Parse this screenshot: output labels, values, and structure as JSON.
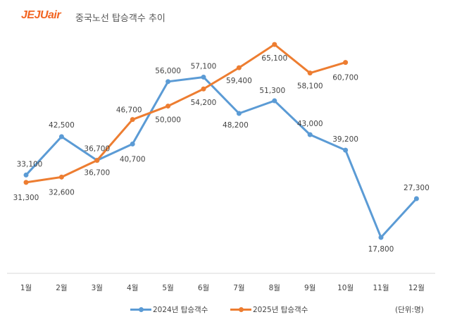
{
  "logo": "JEJUair",
  "title": "중국노선 탑승객수 추이",
  "unit": "(단위:명)",
  "chart_data": {
    "type": "line",
    "title": "중국노선 탑승객수 추이",
    "categories": [
      "1월",
      "2월",
      "3월",
      "4월",
      "5월",
      "6월",
      "7월",
      "8월",
      "9월",
      "10월",
      "11월",
      "12월"
    ],
    "series": [
      {
        "name": "2024년 탑승객수",
        "color": "#5b9bd5",
        "values": [
          33100,
          42500,
          36700,
          40700,
          56000,
          57100,
          48200,
          51300,
          43000,
          39200,
          17800,
          27300
        ],
        "labels": [
          "33,100",
          "42,500",
          "36,700",
          "40,700",
          "56,000",
          "57,100",
          "48,200",
          "51,300",
          "43,000",
          "39,200",
          "17,800",
          "27,300"
        ]
      },
      {
        "name": "2025년 탑승객수",
        "color": "#ed7d31",
        "values": [
          31300,
          32600,
          36700,
          46700,
          50000,
          54200,
          59400,
          65100,
          58100,
          60700,
          null,
          null
        ],
        "labels": [
          "31,300",
          "32,600",
          "36,700",
          "46,700",
          "50,000",
          "54,200",
          "59,400",
          "65,100",
          "58,100",
          "60,700",
          null,
          null
        ]
      }
    ],
    "legend": "bottom",
    "grid": false,
    "y_axis_visible": false,
    "ylim": [
      9000,
      76000
    ]
  }
}
